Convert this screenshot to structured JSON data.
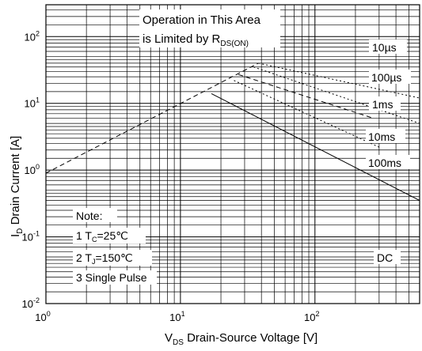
{
  "chart_data": {
    "type": "line",
    "title": "",
    "xlabel": {
      "main": "V",
      "sub": "DS",
      "rest": " Drain-Source Voltage [V]"
    },
    "ylabel": {
      "main": "I",
      "sub": "D",
      "rest": " Drain Current [A]"
    },
    "x_scale": "log",
    "y_scale": "log",
    "xlim": [
      1,
      600
    ],
    "ylim": [
      0.01,
      300
    ],
    "x_ticks": [
      {
        "value": 1,
        "base": "10",
        "exp": "0"
      },
      {
        "value": 10,
        "base": "10",
        "exp": "1"
      },
      {
        "value": 100,
        "base": "10",
        "exp": "2"
      }
    ],
    "y_ticks": [
      {
        "value": 0.01,
        "base": "10",
        "exp": "-2"
      },
      {
        "value": 0.1,
        "base": "10",
        "exp": "-1"
      },
      {
        "value": 1,
        "base": "10",
        "exp": "0"
      },
      {
        "value": 10,
        "base": "10",
        "exp": "1"
      },
      {
        "value": 100,
        "base": "10",
        "exp": "2"
      }
    ],
    "grid": true,
    "series": [
      {
        "name": "10µs",
        "style": "dotted",
        "points": [
          [
            38,
            40
          ],
          [
            600,
            12
          ]
        ]
      },
      {
        "name": "100µs",
        "style": "dotted",
        "points": [
          [
            35,
            35
          ],
          [
            600,
            5
          ]
        ]
      },
      {
        "name": "1ms",
        "style": "dashed",
        "points": [
          [
            27,
            27
          ],
          [
            270,
            6
          ]
        ]
      },
      {
        "name": "10ms",
        "style": "dotted",
        "points": [
          [
            25,
            22
          ],
          [
            300,
            2.2
          ]
        ]
      },
      {
        "name": "100ms",
        "style": "solid",
        "points": [
          [
            17,
            14
          ],
          [
            600,
            0.35
          ]
        ]
      },
      {
        "name": "R_DS(ON) limit",
        "style": "dashed",
        "points": [
          [
            1,
            0.9
          ],
          [
            38,
            40
          ]
        ]
      }
    ],
    "annotations": {
      "limit_line1": "Operation in This Area",
      "limit_line2": "is Limited by R",
      "limit_sub": "DS(ON)",
      "labels": [
        "10µs",
        "100µs",
        "1ms",
        "10ms",
        "100ms",
        "DC"
      ],
      "note_title": "Note:",
      "note1_pre": "1 T",
      "note1_sub": "C",
      "note1_post": "=25℃",
      "note2_pre": "2 T",
      "note2_sub": "J",
      "note2_post": "=150℃",
      "note3": "3 Single Pulse"
    }
  }
}
